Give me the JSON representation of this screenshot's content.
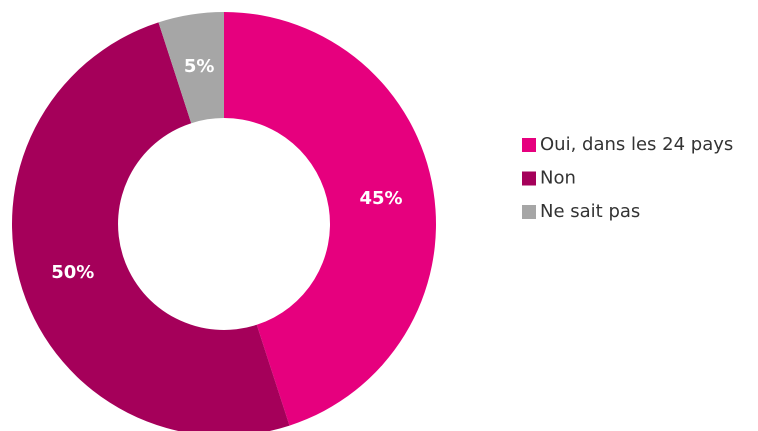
{
  "chart_data": {
    "type": "donut",
    "categories": [
      "Oui, dans les 24 pays",
      "Non",
      "Ne sait pas"
    ],
    "values": [
      45,
      50,
      5
    ],
    "value_labels": [
      "45%",
      "50%",
      "5%"
    ],
    "colors": [
      "#e6007e",
      "#a5005a",
      "#a6a6a6"
    ],
    "legend": "right"
  }
}
